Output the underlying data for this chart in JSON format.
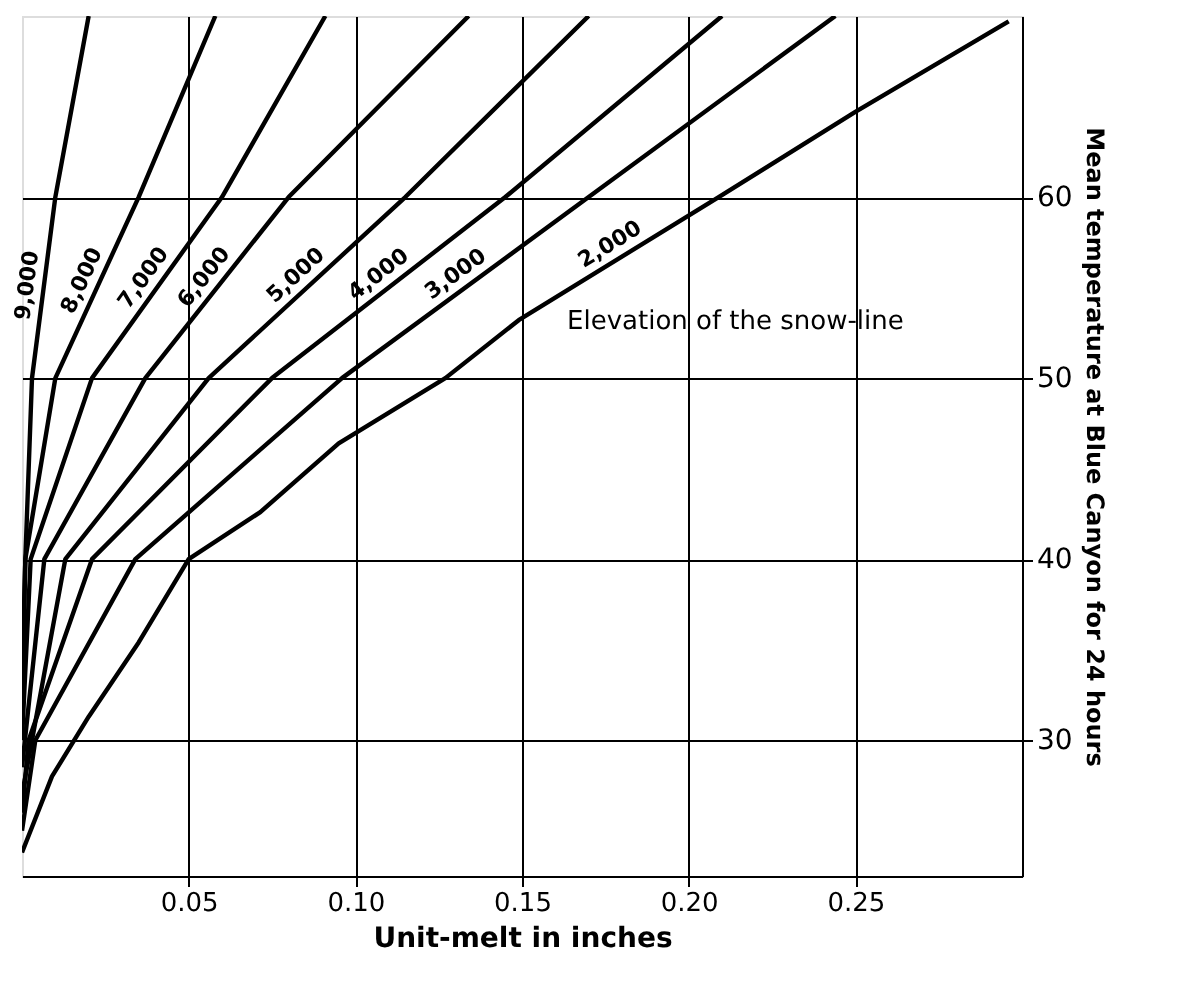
{
  "chart_data": {
    "type": "line",
    "xlabel": "Unit-melt in inches",
    "ylabel": "Mean temperature at Blue Canyon for 24 hours",
    "series": [
      {
        "name": "2,000",
        "color": "#000000",
        "x": [
          0,
          0.009,
          0.02,
          0.035,
          0.05,
          0.0715,
          0.095,
          0.127,
          0.149,
          0.209,
          0.25,
          0.296
        ],
        "values": [
          23.8,
          28,
          31.3,
          35.4,
          40,
          42.6,
          46.4,
          50,
          53.2,
          60,
          64.7,
          69.7
        ]
      },
      {
        "name": "3,000",
        "color": "#000000",
        "x": [
          0,
          0.004,
          0.034,
          0.096,
          0.17,
          0.244
        ],
        "values": [
          25,
          30,
          40,
          50,
          60,
          70
        ]
      },
      {
        "name": "4,000",
        "color": "#000000",
        "x": [
          0,
          0.002,
          0.021,
          0.075,
          0.145,
          0.21
        ],
        "values": [
          26,
          30,
          40,
          50,
          60,
          70
        ]
      },
      {
        "name": "5,000",
        "color": "#000000",
        "x": [
          0,
          0.013,
          0.056,
          0.115,
          0.17
        ],
        "values": [
          27,
          40,
          50,
          60,
          70
        ]
      },
      {
        "name": "6,000",
        "color": "#000000",
        "x": [
          0,
          0.0067,
          0.037,
          0.08,
          0.134
        ],
        "values": [
          28.5,
          40,
          50,
          60,
          70
        ]
      },
      {
        "name": "7,000",
        "color": "#000000",
        "x": [
          0,
          0.0026,
          0.021,
          0.06,
          0.091
        ],
        "values": [
          30,
          40,
          50,
          60,
          70
        ]
      },
      {
        "name": "8,000",
        "color": "#000000",
        "x": [
          0,
          0.001,
          0.01,
          0.035,
          0.058
        ],
        "values": [
          31.5,
          40,
          50,
          60,
          70
        ]
      },
      {
        "name": "9,000",
        "color": "#000000",
        "x": [
          0,
          0.001,
          0.003,
          0.01,
          0.02
        ],
        "values": [
          33,
          40,
          50,
          60,
          70
        ]
      }
    ],
    "xlim": [
      0,
      0.3
    ],
    "ylim": [
      22.5,
      70
    ],
    "xticks": [
      0.05,
      {
        "value": 0.1,
        "label": "0.10"
      },
      0.15,
      {
        "value": 0.2,
        "label": "0.20"
      },
      0.25
    ],
    "yticks": [
      30,
      40,
      50,
      60
    ],
    "grid": true,
    "marker": "none",
    "line_style": "solid",
    "annotations": [
      "Elevation of the snow-line"
    ]
  }
}
